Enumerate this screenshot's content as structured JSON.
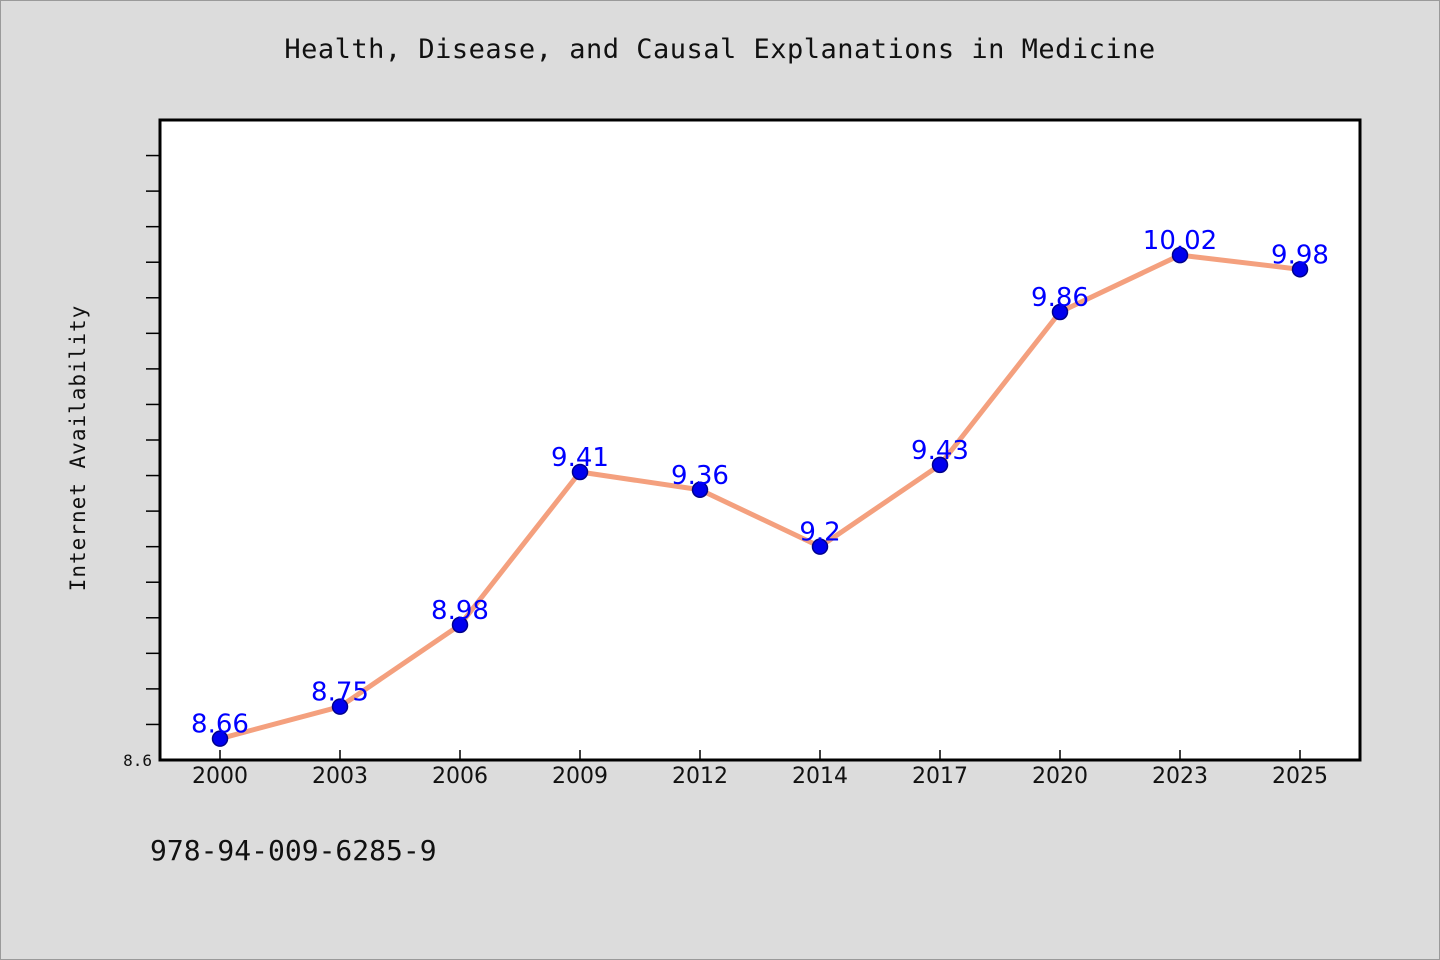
{
  "colors": {
    "background": "#dcdcdc",
    "plot_background": "#ffffff",
    "line": "#f4a07e",
    "marker": "#0000ee",
    "data_label": "#0000ff"
  },
  "isbn": "978-94-009-6285-9",
  "chart_data": {
    "type": "line",
    "title": "Health, Disease, and Causal Explanations in Medicine",
    "xlabel": "",
    "ylabel": "Internet Availability",
    "categories": [
      "2000",
      "2003",
      "2006",
      "2009",
      "2012",
      "2014",
      "2017",
      "2020",
      "2023",
      "2025"
    ],
    "series": [
      {
        "values": [
          8.66,
          8.75,
          8.98,
          9.41,
          9.36,
          9.2,
          9.43,
          9.86,
          10.02,
          9.98
        ]
      }
    ],
    "data_labels": [
      "8.66",
      "8.75",
      "8.98",
      "9.41",
      "9.36",
      "9.2",
      "9.43",
      "9.86",
      "10.02",
      "9.98"
    ],
    "ylim": [
      8.6,
      10.4
    ],
    "ymin_label": "8.6",
    "y_minor_tick_step": 0.1,
    "grid": false,
    "legend": "none"
  }
}
